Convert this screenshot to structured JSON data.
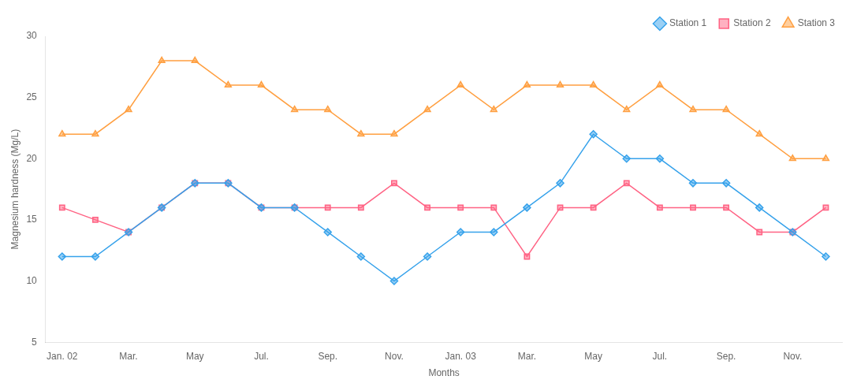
{
  "chart_data": {
    "type": "line",
    "xlabel": "Months",
    "ylabel": "Magnesium hardness (Mg/L)",
    "categories": [
      "Jan. 02",
      null,
      "Mar.",
      null,
      "May",
      null,
      "Jul.",
      null,
      "Sep.",
      null,
      "Nov.",
      null,
      "Jan. 03",
      null,
      "Mar.",
      null,
      "May",
      null,
      "Jul.",
      null,
      "Sep.",
      null,
      "Nov.",
      null
    ],
    "series": [
      {
        "name": "Station 1",
        "marker": "diamond",
        "values": [
          12,
          12,
          14,
          16,
          18,
          18,
          16,
          16,
          14,
          12,
          10,
          12,
          14,
          14,
          16,
          18,
          22,
          20,
          20,
          18,
          18,
          16,
          14,
          12
        ]
      },
      {
        "name": "Station 2",
        "marker": "square",
        "values": [
          16,
          15,
          14,
          16,
          18,
          18,
          16,
          16,
          16,
          16,
          18,
          16,
          16,
          16,
          12,
          16,
          16,
          18,
          16,
          16,
          16,
          14,
          14,
          16
        ]
      },
      {
        "name": "Station 3",
        "marker": "triangle",
        "values": [
          22,
          22,
          24,
          28,
          28,
          26,
          26,
          24,
          24,
          22,
          22,
          24,
          26,
          24,
          26,
          26,
          26,
          24,
          26,
          24,
          24,
          22,
          20,
          20
        ]
      }
    ],
    "ylim": [
      5,
      30
    ],
    "yticks": [
      5,
      10,
      15,
      20,
      25,
      30
    ],
    "grid": false,
    "legend": "upper right"
  }
}
